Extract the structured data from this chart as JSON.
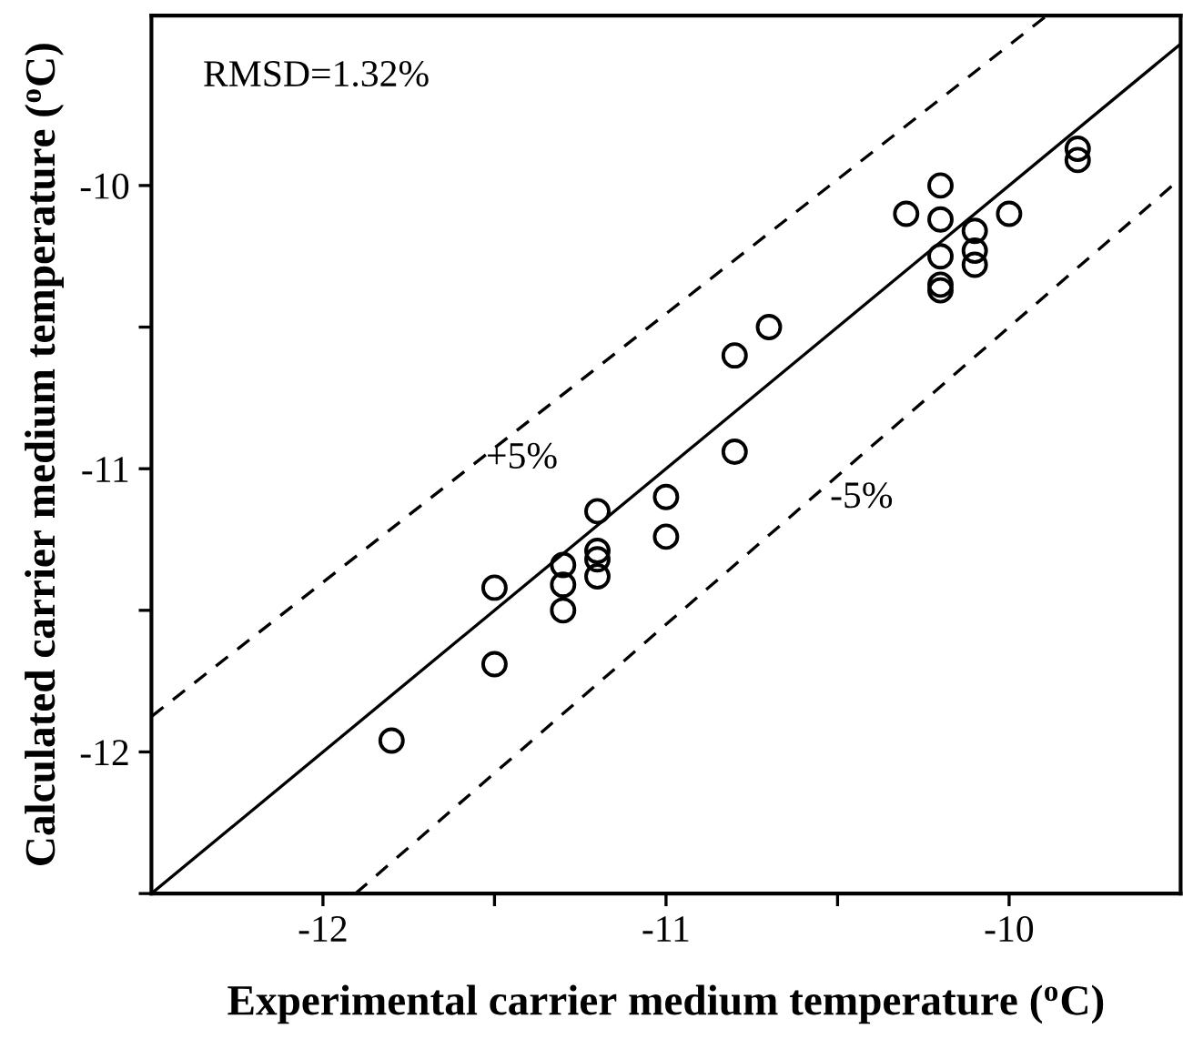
{
  "chart_data": {
    "type": "scatter",
    "xlabel": "Experimental carrier medium temperature ($^{o}$C)",
    "ylabel": "Calculated carrier medium temperature ($^{o}$C)",
    "xlim": [
      -12.5,
      -9.5
    ],
    "ylim": [
      -12.5,
      -9.4
    ],
    "xticks": [
      -12,
      {
        "value": -11.5,
        "label": null
      },
      -11,
      {
        "value": -10.5,
        "label": null
      },
      -10
    ],
    "yticks": [
      {
        "value": -12.5,
        "label": null
      },
      -12,
      {
        "value": -11.5,
        "label": null
      },
      -11,
      {
        "value": -10.5,
        "label": null
      },
      -10
    ],
    "marker": "circle",
    "grid": false,
    "legend": false,
    "series": [
      {
        "color": "#000000",
        "x": [
          -11.8,
          -11.5,
          -11.5,
          -11.3,
          -11.3,
          -11.3,
          -11.2,
          -11.2,
          -11.2,
          -11.2,
          -11.0,
          -11.0,
          -10.8,
          -10.8,
          -10.7,
          -10.3,
          -10.2,
          -10.2,
          -10.2,
          -10.2,
          -10.2,
          -10.1,
          -10.1,
          -10.1,
          -10.0,
          -9.8,
          -9.8
        ],
        "values": [
          -11.96,
          -11.42,
          -11.69,
          -11.34,
          -11.41,
          -11.5,
          -11.15,
          -11.29,
          -11.32,
          -11.38,
          -11.1,
          -11.24,
          -10.6,
          -10.94,
          -10.5,
          -10.1,
          -10.0,
          -10.12,
          -10.25,
          -10.35,
          -10.37,
          -10.16,
          -10.23,
          -10.28,
          -10.1,
          -9.87,
          -9.91
        ]
      },
      {
        "type": "line",
        "color": "#000000",
        "line_style": "solid",
        "marker": "none",
        "x": [
          -12.5,
          -9.5
        ],
        "values": [
          -12.5,
          -9.5
        ]
      },
      {
        "type": "line",
        "color": "#000000",
        "line_style": "dashed",
        "marker": "none",
        "x": [
          -12.5,
          -9.89
        ],
        "values": [
          -11.875,
          -9.4
        ]
      },
      {
        "type": "line",
        "color": "#000000",
        "line_style": "dashed",
        "marker": "none",
        "x": [
          -11.905,
          -9.5
        ],
        "values": [
          -12.5,
          -9.975
        ]
      }
    ],
    "annotations": [
      "RMSD=1.32%",
      "+5%",
      "-5%"
    ]
  }
}
